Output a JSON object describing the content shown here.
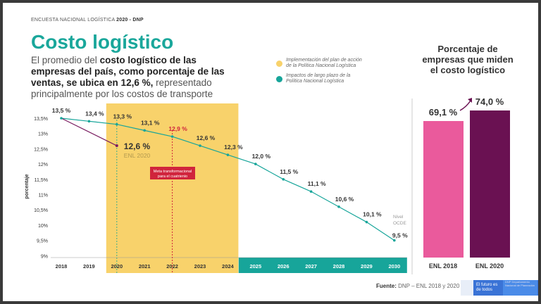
{
  "header": {
    "kicker": "ENCUESTA NACIONAL LOGÍSTICA",
    "kicker_bold": "2020 - DNP",
    "title": "Costo logístico"
  },
  "lead": {
    "p1": "El promedio del ",
    "b1": "costo logístico de las empresas del país, como porcentaje de las ventas, se ubica en 12,6 %,",
    "p2": " representado principalmente por los costos de transporte"
  },
  "legend": [
    {
      "label": "Implementación del plan de acción de la Política Nacional Logística",
      "color": "#f8d26b"
    },
    {
      "label": "Impactos de largo plazo de la Política Nacional Logística",
      "color": "#17a59a"
    }
  ],
  "chart_data": [
    {
      "type": "line",
      "ylabel": "porcentaje",
      "x": [
        2018,
        2019,
        2020,
        2021,
        2022,
        2023,
        2024,
        2025,
        2026,
        2027,
        2028,
        2029,
        2030
      ],
      "ylim": [
        9,
        13.5
      ],
      "yticks": [
        "9%",
        "9,5%",
        "10%",
        "10,5%",
        "11%",
        "11,5%",
        "12%",
        "12,5%",
        "13%",
        "13,5%"
      ],
      "series": [
        {
          "values": [
            13.5,
            13.4,
            13.3,
            13.1,
            12.9,
            12.6,
            12.3,
            12.0,
            11.5,
            11.1,
            10.6,
            10.1,
            9.5
          ],
          "labels": [
            "13,5 %",
            "13,4 %",
            "13,3 %",
            "13,1 %",
            "12,9 %",
            "12,6 %",
            "12,3 %",
            "12,0 %",
            "11,5 %",
            "11,1 %",
            "10,6 %",
            "10,1 %",
            "9,5 %"
          ],
          "color": "#17a59a"
        },
        {
          "x": [
            2018,
            2020
          ],
          "values": [
            13.5,
            12.6
          ],
          "color": "#7a1f62"
        }
      ],
      "annotations": {
        "enl_value": "12,6 %",
        "enl_label": "ENL 2020",
        "meta": "Meta transformacional para el cuatrienio",
        "ocde": "Nivel OCDE",
        "highlight_color": "#d0243c"
      },
      "bands": [
        {
          "from": 2020,
          "to": 2024,
          "color": "#f8d26b"
        },
        {
          "from": 2025,
          "to": 2030,
          "color": "#17a59a"
        }
      ]
    },
    {
      "type": "bar",
      "title": "Porcentaje de empresas que miden el costo logístico",
      "categories": [
        "ENL 2018",
        "ENL 2020"
      ],
      "values": [
        69.1,
        74.0
      ],
      "labels": [
        "69,1 %",
        "74,0 %"
      ],
      "colors": [
        "#ea5a9c",
        "#6a1152"
      ]
    }
  ],
  "footer": {
    "source_label": "Fuente:",
    "source": " DNP – ENL 2018 y 2020",
    "logo1": "El futuro es de todos",
    "logo2": "DNP Departamento Nacional de Planeación"
  }
}
